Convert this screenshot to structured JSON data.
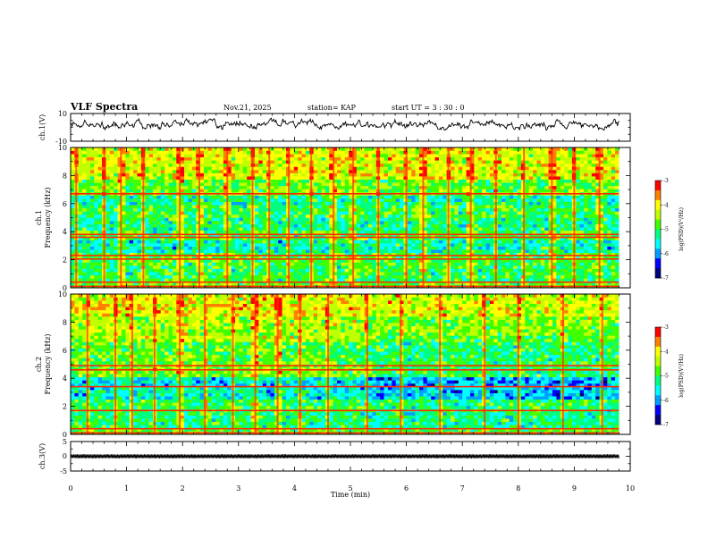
{
  "header": {
    "title": "VLF Spectra",
    "date": "Nov.21, 2025",
    "station": "station= KAP",
    "start_time": "start  UT =  3 : 30 : 0"
  },
  "colorbar_label": "log(PSD)(V²/Hz)",
  "colors": {
    "colormap": [
      "#000080",
      "#0000ff",
      "#00a0ff",
      "#00ffff",
      "#00ff80",
      "#40ff00",
      "#c0ff00",
      "#ffff00",
      "#ff8000",
      "#ff0000",
      "#ffffff"
    ],
    "waveform": "#000000",
    "band_line": "#ff2a00"
  },
  "chart_data": [
    {
      "type": "line",
      "name": "ch1-waveform",
      "ylabel": "ch.1(V)",
      "ylim": [
        -10,
        10
      ],
      "yticks": [
        -10,
        10
      ],
      "ytick_labels": [
        "-10",
        "10"
      ],
      "xlim": [
        0,
        10
      ],
      "duration_min": 9.8,
      "mean": 2,
      "envelope": [
        -2,
        7
      ],
      "shape": "noisy time series fluctuating roughly between -2 V and 7 V"
    },
    {
      "type": "heatmap",
      "name": "ch1-spectrogram",
      "ylabel": "ch.1",
      "ylabel2": "Frequency (kHz)",
      "ylim": [
        0,
        10
      ],
      "yticks": [
        0,
        2,
        4,
        6,
        8,
        10
      ],
      "ytick_labels": [
        "0",
        "2",
        "4",
        "6",
        "8",
        "10"
      ],
      "xlim": [
        0,
        10
      ],
      "duration_min": 9.8,
      "color_range": [
        -7,
        -3
      ],
      "colorbar_ticks": [
        "-3",
        "-4",
        "-5",
        "-6",
        "-7"
      ],
      "band_levels": [
        {
          "from": 0,
          "to": 0.4,
          "value": -4.8
        },
        {
          "from": 0.4,
          "to": 1.8,
          "value": -5.0
        },
        {
          "from": 1.8,
          "to": 2.4,
          "value": -4.9
        },
        {
          "from": 2.4,
          "to": 3.4,
          "value": -5.4
        },
        {
          "from": 3.4,
          "to": 4.0,
          "value": -5.0
        },
        {
          "from": 4.0,
          "to": 5.0,
          "value": -5.2
        },
        {
          "from": 5.0,
          "to": 5.8,
          "value": -5.0
        },
        {
          "from": 5.8,
          "to": 6.6,
          "value": -5.3
        },
        {
          "from": 6.6,
          "to": 7.0,
          "value": -4.7
        },
        {
          "from": 7.0,
          "to": 7.8,
          "value": -4.8
        },
        {
          "from": 7.8,
          "to": 10.0,
          "value": -4.2
        }
      ],
      "strong_lines_khz": [
        0.1,
        0.4,
        2.05,
        2.3,
        3.6,
        3.8,
        6.7
      ],
      "impulse_times_min": [
        0.1,
        0.6,
        0.9,
        1.3,
        1.95,
        2.3,
        2.8,
        3.25,
        3.55,
        3.9,
        4.3,
        4.7,
        5.05,
        5.5,
        6.0,
        6.3,
        6.75,
        7.15,
        7.6,
        8.1,
        8.6,
        9.0,
        9.45
      ]
    },
    {
      "type": "heatmap",
      "name": "ch2-spectrogram",
      "ylabel": "ch.2",
      "ylabel2": "Frequency (kHz)",
      "ylim": [
        0,
        10
      ],
      "yticks": [
        0,
        2,
        4,
        6,
        8,
        10
      ],
      "ytick_labels": [
        "0",
        "2",
        "4",
        "6",
        "8",
        "10"
      ],
      "xlim": [
        0,
        10
      ],
      "duration_min": 9.8,
      "color_range": [
        -7,
        -3
      ],
      "colorbar_ticks": [
        "-3",
        "-4",
        "-5",
        "-6",
        "-7"
      ],
      "band_levels": [
        {
          "from": 0,
          "to": 0.4,
          "value": -4.8
        },
        {
          "from": 0.4,
          "to": 1.6,
          "value": -5.1
        },
        {
          "from": 1.6,
          "to": 2.6,
          "value": -5.0
        },
        {
          "from": 2.6,
          "to": 3.4,
          "value": -5.5
        },
        {
          "from": 3.4,
          "to": 4.2,
          "value": -5.6
        },
        {
          "from": 4.2,
          "to": 5.2,
          "value": -4.7
        },
        {
          "from": 5.2,
          "to": 6.6,
          "value": -4.8
        },
        {
          "from": 6.6,
          "to": 8.4,
          "value": -4.5
        },
        {
          "from": 8.4,
          "to": 10.0,
          "value": -4.1
        }
      ],
      "quiet_after_min": 5.2,
      "strong_lines_khz": [
        0.1,
        0.4,
        1.7,
        3.4,
        4.6,
        4.9
      ],
      "impulse_times_min": [
        0.3,
        0.8,
        1.1,
        1.5,
        1.95,
        2.4,
        2.9,
        3.3,
        3.7,
        4.1,
        4.6,
        5.3,
        5.9,
        6.6,
        7.4,
        8.0,
        8.8,
        9.5
      ]
    },
    {
      "type": "line",
      "name": "ch3-waveform",
      "ylabel": "ch.3(V)",
      "ylim": [
        -5,
        5
      ],
      "yticks": [
        -5,
        0,
        5
      ],
      "ytick_labels": [
        "-5",
        "0",
        "5"
      ],
      "xlim": [
        0,
        10
      ],
      "duration_min": 9.8,
      "mean": 0,
      "envelope": [
        -0.7,
        0.7
      ],
      "shape": "dense high-frequency band around 0 V"
    }
  ],
  "x_axis": {
    "label": "Time (min)",
    "ticks": [
      0,
      1,
      2,
      3,
      4,
      5,
      6,
      7,
      8,
      9,
      10
    ],
    "tick_labels": [
      "0",
      "1",
      "2",
      "3",
      "4",
      "5",
      "6",
      "7",
      "8",
      "9",
      "10"
    ]
  }
}
